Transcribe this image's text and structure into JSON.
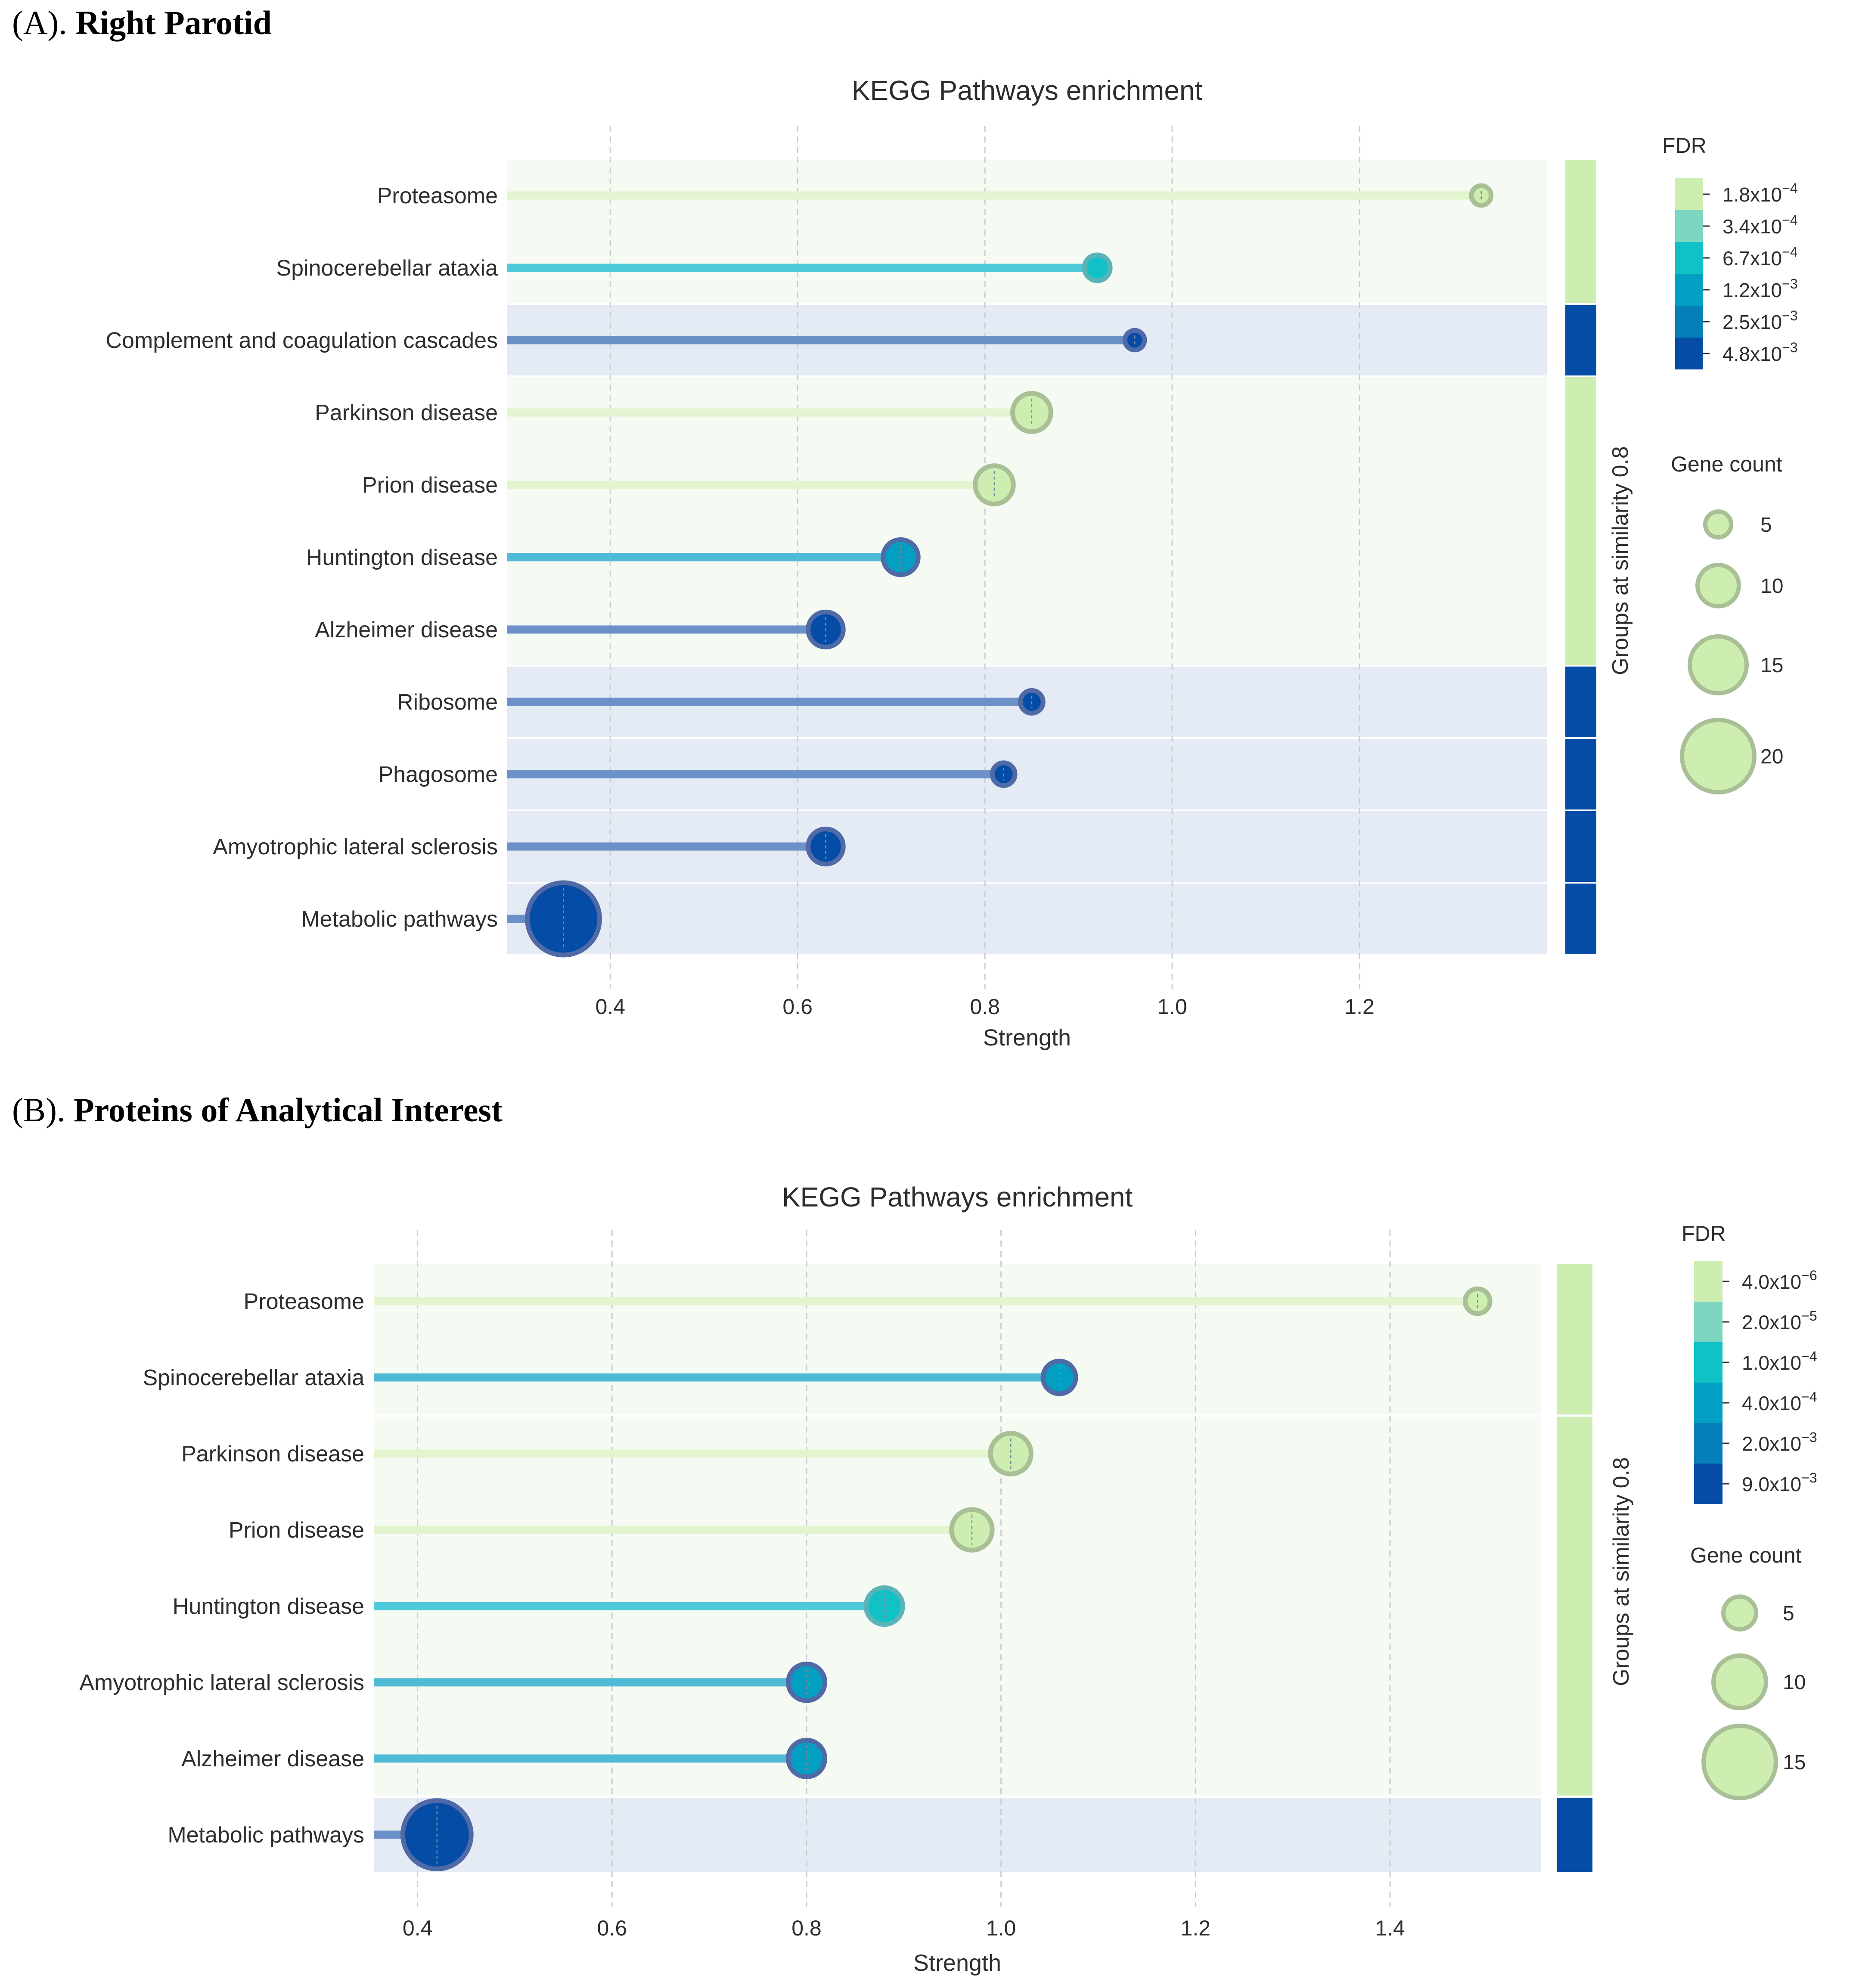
{
  "panels": [
    {
      "label": "(A)",
      "heading": "Right Parotid",
      "chart_data": {
        "type": "lollipop",
        "title": "KEGG Pathways enrichment",
        "xlabel": "Strength",
        "ylabel": "",
        "xlim": [
          0.29,
          1.4
        ],
        "xticks": [
          "0.4",
          "0.6",
          "0.8",
          "1.0",
          "1.2"
        ],
        "xtick_values": [
          0.4,
          0.6,
          0.8,
          1.0,
          1.2
        ],
        "grid": "vertical dashed",
        "categories": [
          "Proteasome",
          "Spinocerebellar ataxia",
          "Complement and coagulation cascades",
          "Parkinson disease",
          "Prion disease",
          "Huntington disease",
          "Alzheimer disease",
          "Ribosome",
          "Phagosome",
          "Amyotrophic lateral sclerosis",
          "Metabolic pathways"
        ],
        "strength": [
          1.33,
          0.92,
          0.96,
          0.85,
          0.81,
          0.71,
          0.63,
          0.85,
          0.82,
          0.63,
          0.35
        ],
        "gene_count": [
          3,
          5,
          3,
          9,
          9,
          8,
          8,
          4,
          4,
          8,
          20
        ],
        "fdr_level": [
          0,
          2,
          5,
          0,
          0,
          3,
          5,
          5,
          5,
          5,
          5
        ],
        "groups": [
          {
            "rows": [
              0,
              1
            ],
            "color_level": 0
          },
          {
            "rows": [
              2,
              2
            ],
            "color_level": 5
          },
          {
            "rows": [
              3,
              6
            ],
            "color_level": 0
          },
          {
            "rows": [
              7,
              7
            ],
            "color_level": 5
          },
          {
            "rows": [
              8,
              8
            ],
            "color_level": 5
          },
          {
            "rows": [
              9,
              9
            ],
            "color_level": 5
          },
          {
            "rows": [
              10,
              10
            ],
            "color_level": 5
          }
        ],
        "group_axis_label": "Groups at similarity 0.8",
        "fdr_legend": {
          "title": "FDR",
          "labels": [
            "1.8x10^-4",
            "3.4x10^-4",
            "6.7x10^-4",
            "1.2x10^-3",
            "2.5x10^-3",
            "4.8x10^-3"
          ],
          "mantissas": [
            "1.8x10",
            "3.4x10",
            "6.7x10",
            "1.2x10",
            "2.5x10",
            "4.8x10"
          ],
          "exponents": [
            "−4",
            "−4",
            "−4",
            "−3",
            "−3",
            "−3"
          ]
        },
        "size_legend": {
          "title": "Gene count",
          "labels": [
            "5",
            "10",
            "15",
            "20"
          ],
          "values": [
            5,
            10,
            15,
            20
          ]
        }
      }
    },
    {
      "label": "(B)",
      "heading": "Proteins of Analytical Interest",
      "chart_data": {
        "type": "lollipop",
        "title": "KEGG Pathways enrichment",
        "xlabel": "Strength",
        "ylabel": "",
        "xlim": [
          0.355,
          1.555
        ],
        "xticks": [
          "0.4",
          "0.6",
          "0.8",
          "1.0",
          "1.2",
          "1.4"
        ],
        "xtick_values": [
          0.4,
          0.6,
          0.8,
          1.0,
          1.2,
          1.4
        ],
        "grid": "vertical dashed",
        "categories": [
          "Proteasome",
          "Spinocerebellar ataxia",
          "Parkinson disease",
          "Prion disease",
          "Huntington disease",
          "Amyotrophic lateral sclerosis",
          "Alzheimer disease",
          "Metabolic pathways"
        ],
        "strength": [
          1.49,
          1.06,
          1.01,
          0.97,
          0.88,
          0.8,
          0.8,
          0.42
        ],
        "gene_count": [
          3,
          5,
          7,
          7,
          6,
          6,
          6,
          14
        ],
        "fdr_level": [
          0,
          3,
          0,
          0,
          2,
          3,
          3,
          5
        ],
        "groups": [
          {
            "rows": [
              0,
              1
            ],
            "color_level": 0
          },
          {
            "rows": [
              2,
              6
            ],
            "color_level": 0
          },
          {
            "rows": [
              7,
              7
            ],
            "color_level": 5
          }
        ],
        "group_axis_label": "Groups at similarity 0.8",
        "fdr_legend": {
          "title": "FDR",
          "labels": [
            "4.0x10^-6",
            "2.0x10^-5",
            "1.0x10^-4",
            "4.0x10^-4",
            "2.0x10^-3",
            "9.0x10^-3"
          ],
          "mantissas": [
            "4.0x10",
            "2.0x10",
            "1.0x10",
            "4.0x10",
            "2.0x10",
            "9.0x10"
          ],
          "exponents": [
            "−6",
            "−5",
            "−4",
            "−4",
            "−3",
            "−3"
          ]
        },
        "size_legend": {
          "title": "Gene count",
          "labels": [
            "5",
            "10",
            "15"
          ],
          "values": [
            5,
            10,
            15
          ]
        }
      }
    }
  ],
  "palette": {
    "fdr_fill": [
      "#cdeeb0",
      "#7dd6c0",
      "#10c2c6",
      "#039fc2",
      "#047fba",
      "#054ca6"
    ],
    "fdr_stem": [
      "#e2f5cf",
      "#86d8cf",
      "#4fcada",
      "#4fbad6",
      "#5a95cb",
      "#6b91c8"
    ],
    "bg_light": "#f5faf3",
    "bg_dark": "#e5ebf5",
    "bubble_edge_light": "#a9bf95",
    "bubble_edge_dark": "#4f6aa6",
    "grid": "#c9cdd6",
    "text": "#2d2d2d"
  }
}
